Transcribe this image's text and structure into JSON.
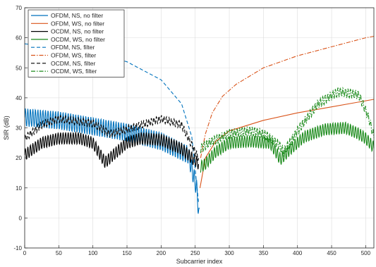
{
  "chart_data": {
    "type": "line",
    "title": "",
    "xlabel": "Subcarrier index",
    "ylabel": "SIR (dB)",
    "xlim": [
      0,
      512
    ],
    "ylim": [
      -10,
      70
    ],
    "xticks": [
      0,
      50,
      100,
      150,
      200,
      250,
      300,
      350,
      400,
      450,
      500
    ],
    "yticks": [
      -10,
      0,
      10,
      20,
      30,
      40,
      50,
      60,
      70
    ],
    "grid": true,
    "legend_position": "top-left",
    "colors": {
      "blue": "#0072bd",
      "orange": "#d95319",
      "black": "#000000",
      "green": "#1a8a1a"
    },
    "series": [
      {
        "name": "OFDM, NS, no filter",
        "color": "#0072bd",
        "style": "solid",
        "x": [
          0,
          50,
          100,
          150,
          200,
          240,
          252,
          256
        ],
        "y": [
          33.5,
          32.5,
          30.5,
          28.5,
          25.5,
          21,
          10,
          0
        ],
        "ripple": 3
      },
      {
        "name": "OFDM, WS, no filter",
        "color": "#d95319",
        "style": "solid",
        "x": [
          257,
          265,
          280,
          300,
          350,
          400,
          450,
          512
        ],
        "y": [
          10,
          20,
          25.5,
          29,
          32.5,
          35,
          37,
          39.5
        ]
      },
      {
        "name": "OCDM, NS, no filter",
        "color": "#000000",
        "style": "solid",
        "x": [
          0,
          25,
          50,
          80,
          100,
          118,
          130,
          150,
          170,
          200,
          230,
          250,
          255
        ],
        "y": [
          21,
          25,
          26.5,
          26.5,
          25,
          18.5,
          21,
          25,
          26.5,
          26,
          23,
          19,
          18
        ],
        "ripple": 2
      },
      {
        "name": "OCDM, WS, no filter",
        "color": "#1a8a1a",
        "style": "solid",
        "x": [
          258,
          265,
          280,
          300,
          330,
          360,
          375,
          390,
          410,
          440,
          470,
          490,
          500,
          512
        ],
        "y": [
          17,
          18,
          22,
          25,
          25.5,
          25,
          19.5,
          23,
          27,
          29.5,
          30,
          28,
          26.5,
          23.5
        ],
        "ripple": 2
      },
      {
        "name": "OFDM, NS, filter",
        "color": "#0072bd",
        "style": "dashed",
        "x": [
          0,
          20,
          50,
          100,
          150,
          200,
          230,
          245,
          252,
          255
        ],
        "y": [
          58,
          57.5,
          57,
          55,
          52,
          46,
          38,
          27,
          12,
          5
        ]
      },
      {
        "name": "OFDM, WS, filter",
        "color": "#d95319",
        "style": "dashdot",
        "x": [
          258,
          265,
          275,
          290,
          310,
          350,
          400,
          450,
          500,
          512
        ],
        "y": [
          20,
          28,
          35,
          40.5,
          44.5,
          50,
          54,
          57,
          60,
          60.5
        ]
      },
      {
        "name": "OCDM, NS, filter",
        "color": "#000000",
        "style": "dashed",
        "x": [
          0,
          25,
          50,
          100,
          125,
          150,
          200,
          230,
          250,
          255
        ],
        "y": [
          26.5,
          31,
          33,
          31.5,
          28,
          29.5,
          33,
          31,
          22,
          20
        ],
        "ripple": 1.2
      },
      {
        "name": "OCDM, WS, filter",
        "color": "#1a8a1a",
        "style": "dashdot",
        "x": [
          258,
          270,
          300,
          330,
          350,
          370,
          380,
          400,
          430,
          460,
          490,
          505,
          512
        ],
        "y": [
          23,
          25,
          28,
          29,
          28,
          25,
          22,
          29,
          38,
          42,
          41,
          33,
          27
        ],
        "ripple": 1.5
      }
    ]
  }
}
